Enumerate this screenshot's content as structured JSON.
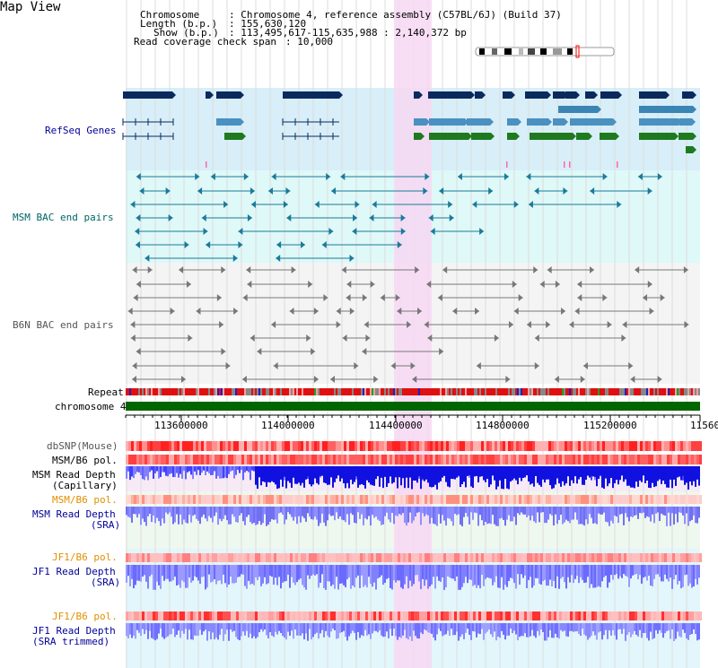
{
  "window": {
    "title": "Map View"
  },
  "info": {
    "chromosome_label": "Chromosome",
    "chromosome_value": ": Chromosome 4, reference assembly (C57BL/6J) (Build 37)",
    "length_label": "Length (b.p.)",
    "length_value": ": 155,630,120",
    "show_label": "Show (b.p.)",
    "show_value": ": 113,495,617-115,635,988 : 2,140,372 bp",
    "span_label": "Read coverage check span",
    "span_value": ": 10,000"
  },
  "tracks": {
    "refseq": "RefSeq Genes",
    "msm_bac": "MSM BAC end pairs",
    "b6n_bac": "B6N BAC end pairs",
    "repeat": "Repeat",
    "chromosome": "chromosome 4",
    "dbsnp": "dbSNP(Mouse)",
    "msm_b6_pol_1": "MSM/B6 pol.",
    "msm_read_depth_cap_1": "MSM Read Depth",
    "msm_read_depth_cap_2": "(Capillary)",
    "msm_b6_pol_2": "MSM/B6 pol.",
    "msm_read_depth_sra_1": "MSM Read Depth",
    "msm_read_depth_sra_2": "(SRA)",
    "jf1_b6_pol_1": "JF1/B6 pol.",
    "jf1_read_depth_1": "JF1 Read Depth",
    "jf1_read_depth_2": "(SRA)",
    "jf1_b6_pol_2": "JF1/B6 pol.",
    "jf1_read_depth_trim_1": "JF1 Read Depth",
    "jf1_read_depth_trim_2": "(SRA trimmed)"
  },
  "axis": {
    "ticks": [
      "113600000",
      "114000000",
      "114400000",
      "114800000",
      "115200000",
      "11560"
    ]
  },
  "colors": {
    "label_blue": "#000099",
    "label_orange": "#e09000",
    "label_teal": "#006666",
    "label_gray": "#555555",
    "highlight": "#f7d8f3",
    "chromosome_bar": "#006600"
  }
}
